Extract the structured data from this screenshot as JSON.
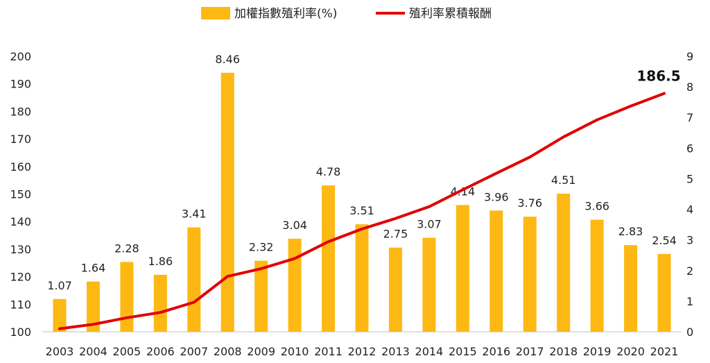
{
  "legend": {
    "bar_label": "加權指數殖利率(%)",
    "line_label": "殖利率累積報酬"
  },
  "colors": {
    "bar": "#FDB813",
    "line": "#E00000"
  },
  "chart_data": {
    "type": "bar+line",
    "categories": [
      "2003",
      "2004",
      "2005",
      "2006",
      "2007",
      "2008",
      "2009",
      "2010",
      "2011",
      "2012",
      "2013",
      "2014",
      "2015",
      "2016",
      "2017",
      "2018",
      "2019",
      "2020",
      "2021"
    ],
    "series": [
      {
        "name": "加權指數殖利率(%)",
        "type": "bar",
        "axis": "right",
        "values": [
          1.07,
          1.64,
          2.28,
          1.86,
          3.41,
          8.46,
          2.32,
          3.04,
          4.78,
          3.51,
          2.75,
          3.07,
          4.14,
          3.96,
          3.76,
          4.51,
          3.66,
          2.83,
          2.54
        ],
        "labels": [
          "1.07",
          "1.64",
          "2.28",
          "1.86",
          "3.41",
          "8.46",
          "2.32",
          "3.04",
          "4.78",
          "3.51",
          "2.75",
          "3.07",
          "4.14",
          "3.96",
          "3.76",
          "4.51",
          "3.66",
          "2.83",
          "2.54"
        ]
      },
      {
        "name": "殖利率累積報酬",
        "type": "line",
        "axis": "left",
        "values": [
          101.1,
          102.7,
          105.1,
          107.0,
          110.7,
          120.1,
          122.9,
          126.6,
          132.7,
          137.3,
          141.1,
          145.4,
          151.5,
          157.5,
          163.4,
          170.7,
          176.9,
          181.9,
          186.5
        ]
      }
    ],
    "y_left": {
      "range": [
        100,
        200
      ],
      "ticks": [
        "100",
        "110",
        "120",
        "130",
        "140",
        "150",
        "160",
        "170",
        "180",
        "190",
        "200"
      ]
    },
    "y_right": {
      "range": [
        0,
        9
      ],
      "ticks": [
        "0",
        "1",
        "2",
        "3",
        "4",
        "5",
        "6",
        "7",
        "8",
        "9"
      ]
    },
    "last_value_label": "186.5",
    "legend_position": "top-center",
    "grid": false
  }
}
